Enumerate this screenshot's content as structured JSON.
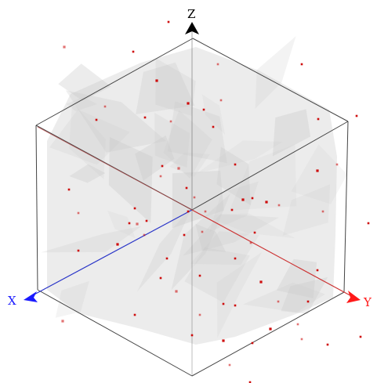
{
  "viewer": {
    "background": "#ffffff",
    "box_edge_color": "#444444",
    "point_color": "#cc0000",
    "fill_color": "#d6d6d6"
  },
  "axes": {
    "x": {
      "label": "X",
      "color": "#1a1aff"
    },
    "y": {
      "label": "Y",
      "color": "#ff1a1a"
    },
    "z": {
      "label": "Z",
      "color": "#000000"
    }
  }
}
